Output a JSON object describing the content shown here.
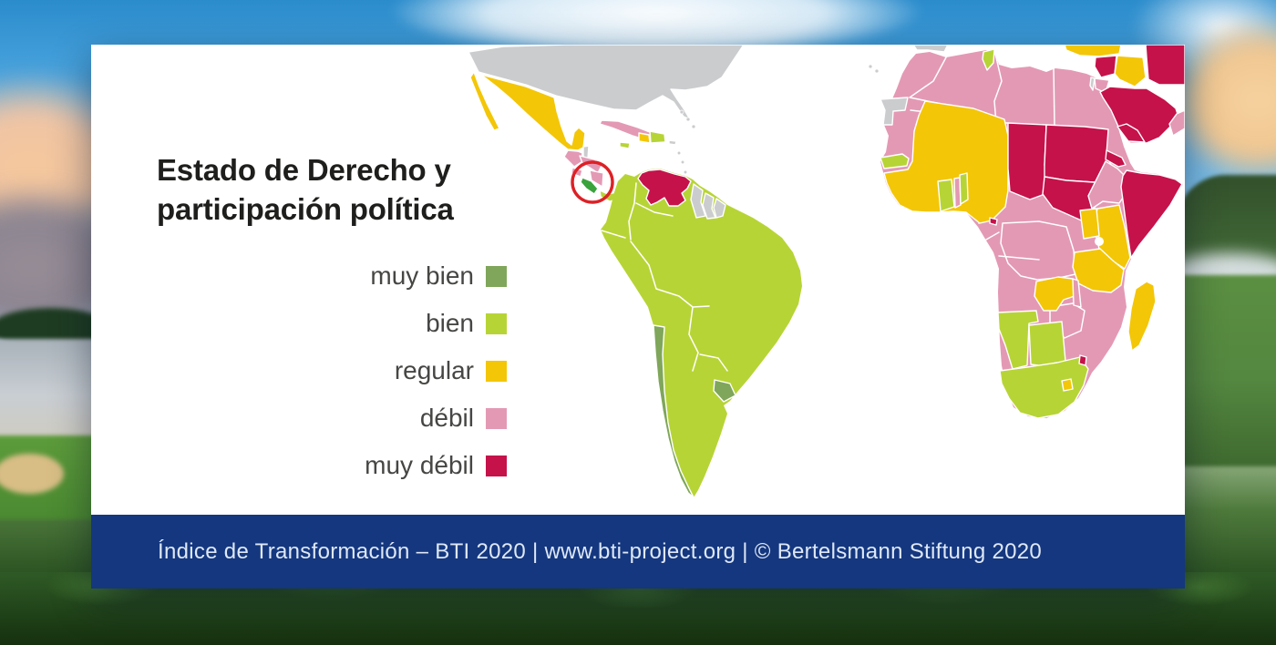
{
  "title": {
    "line1": "Estado de Derecho y",
    "line2": "participación política"
  },
  "legend": {
    "items": [
      {
        "label": "muy bien",
        "color": "#7fa65a"
      },
      {
        "label": "bien",
        "color": "#b7d436"
      },
      {
        "label": "regular",
        "color": "#f3c607"
      },
      {
        "label": "débil",
        "color": "#e399b4"
      },
      {
        "label": "muy débil",
        "color": "#c5124b"
      }
    ]
  },
  "footer": {
    "text": "Índice de Transformación – BTI 2020 | www.bti-project.org | © Bertelsmann Stiftung 2020",
    "background": "#14377f",
    "text_color": "#dfe8f6"
  },
  "map": {
    "ocean_color": "#ffffff",
    "border_color": "#ffffff",
    "category_colors": {
      "muy bien": "#7fa65a",
      "bien": "#b7d436",
      "regular": "#f3c607",
      "débil": "#e399b4",
      "muy débil": "#c5124b",
      "not-rated": "#cbccce"
    },
    "highlight": {
      "country": "costa-rica",
      "fill": "#3aa33c",
      "marker": "red-circle",
      "marker_color": "#dd2126"
    },
    "countries": [
      {
        "id": "united-states",
        "category": "not-rated"
      },
      {
        "id": "canary-islands",
        "category": "not-rated"
      },
      {
        "id": "bahamas",
        "category": "not-rated"
      },
      {
        "id": "mexico",
        "category": "regular"
      },
      {
        "id": "belize",
        "category": "not-rated"
      },
      {
        "id": "guatemala",
        "category": "débil"
      },
      {
        "id": "el-salvador",
        "category": "débil"
      },
      {
        "id": "honduras",
        "category": "débil"
      },
      {
        "id": "nicaragua",
        "category": "débil"
      },
      {
        "id": "costa-rica",
        "category": "muy bien"
      },
      {
        "id": "panama",
        "category": "bien"
      },
      {
        "id": "cuba",
        "category": "débil"
      },
      {
        "id": "jamaica",
        "category": "bien"
      },
      {
        "id": "haiti",
        "category": "regular"
      },
      {
        "id": "dominican-republic",
        "category": "bien"
      },
      {
        "id": "puerto-rico",
        "category": "not-rated"
      },
      {
        "id": "lesser-antilles",
        "category": "not-rated"
      },
      {
        "id": "trinidad",
        "category": "not-rated"
      },
      {
        "id": "south-america-bien",
        "category": "bien"
      },
      {
        "id": "venezuela",
        "category": "muy débil"
      },
      {
        "id": "guyana",
        "category": "not-rated"
      },
      {
        "id": "suriname",
        "category": "not-rated"
      },
      {
        "id": "french-guiana",
        "category": "not-rated"
      },
      {
        "id": "chile",
        "category": "muy bien"
      },
      {
        "id": "uruguay",
        "category": "muy bien"
      },
      {
        "id": "iberia",
        "category": "not-rated"
      },
      {
        "id": "africa-debil-base",
        "category": "débil"
      },
      {
        "id": "western-sahara",
        "category": "not-rated"
      },
      {
        "id": "senegal",
        "category": "bien"
      },
      {
        "id": "west-africa-regular",
        "category": "regular"
      },
      {
        "id": "ghana",
        "category": "bien"
      },
      {
        "id": "togo",
        "category": "débil"
      },
      {
        "id": "benin",
        "category": "bien"
      },
      {
        "id": "tunisia",
        "category": "bien"
      },
      {
        "id": "chad",
        "category": "muy débil"
      },
      {
        "id": "sudan",
        "category": "muy débil"
      },
      {
        "id": "south-sudan",
        "category": "muy débil"
      },
      {
        "id": "eritrea",
        "category": "muy débil"
      },
      {
        "id": "ethiopia",
        "category": "débil"
      },
      {
        "id": "somalia",
        "category": "muy débil"
      },
      {
        "id": "kenya",
        "category": "regular"
      },
      {
        "id": "uganda",
        "category": "regular"
      },
      {
        "id": "tanzania",
        "category": "regular"
      },
      {
        "id": "zambia",
        "category": "regular"
      },
      {
        "id": "malawi",
        "category": "débil"
      },
      {
        "id": "equatorial-guinea",
        "category": "muy débil"
      },
      {
        "id": "namibia",
        "category": "bien"
      },
      {
        "id": "botswana",
        "category": "bien"
      },
      {
        "id": "south-africa",
        "category": "bien"
      },
      {
        "id": "lesotho",
        "category": "regular"
      },
      {
        "id": "eswatini",
        "category": "muy débil"
      },
      {
        "id": "madagascar",
        "category": "regular"
      },
      {
        "id": "turkey",
        "category": "regular"
      },
      {
        "id": "syria",
        "category": "muy débil"
      },
      {
        "id": "iraq",
        "category": "regular"
      },
      {
        "id": "iran",
        "category": "muy débil"
      },
      {
        "id": "jordan",
        "category": "débil"
      },
      {
        "id": "israel",
        "category": "not-rated"
      },
      {
        "id": "saudi-arabia",
        "category": "muy débil"
      },
      {
        "id": "yemen",
        "category": "muy débil"
      },
      {
        "id": "oman",
        "category": "débil"
      }
    ]
  }
}
